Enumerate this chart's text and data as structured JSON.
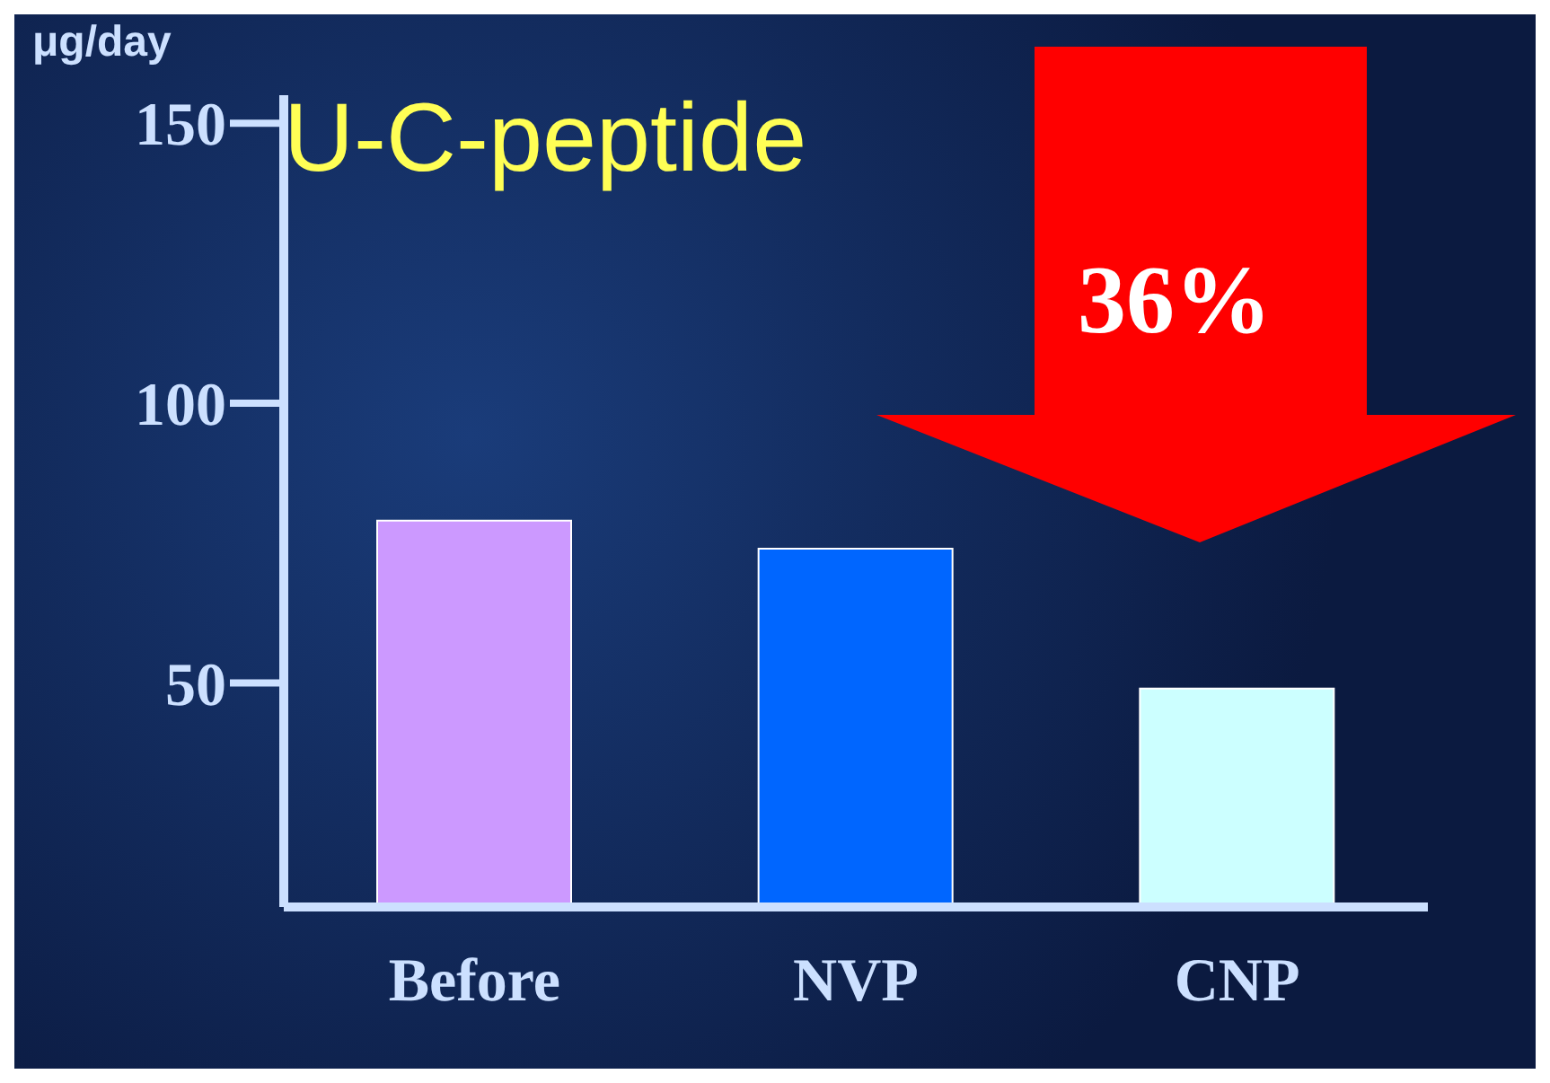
{
  "chart_data": {
    "type": "bar",
    "title": "U-C-peptide",
    "ylabel": "μg/day",
    "categories": [
      "Before",
      "NVP",
      "CNP"
    ],
    "values": [
      79,
      74,
      49
    ],
    "colors": [
      "#cc99ff",
      "#0066ff",
      "#ccffff"
    ],
    "ylim": [
      10,
      155
    ],
    "yticks": [
      50,
      100,
      150
    ],
    "annotations": [
      "36%"
    ]
  }
}
